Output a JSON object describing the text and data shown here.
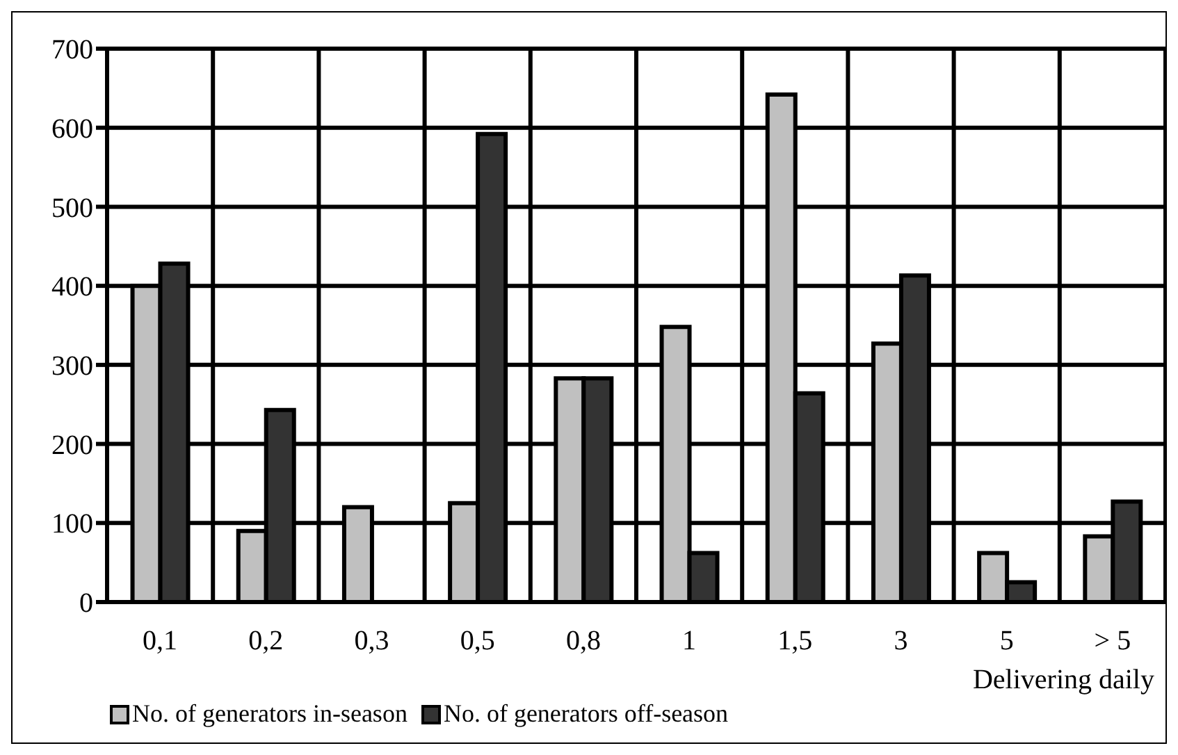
{
  "chart_data": {
    "type": "bar",
    "xlabel": "Delivering daily",
    "categories": [
      "0,1",
      "0,2",
      "0,3",
      "0,5",
      "0,8",
      "1",
      "1,5",
      "3",
      "5",
      "> 5"
    ],
    "series": [
      {
        "name": "No. of generators in-season",
        "color": "#c0c0c0",
        "values": [
          400,
          90,
          120,
          125,
          283,
          348,
          642,
          327,
          62,
          83
        ]
      },
      {
        "name": "No. of generators off-season",
        "color": "#333333",
        "values": [
          428,
          243,
          0,
          592,
          283,
          62,
          264,
          413,
          25,
          127
        ]
      }
    ],
    "ylim": [
      0,
      700
    ],
    "yticks": [
      0,
      100,
      200,
      300,
      400,
      500,
      600,
      700
    ],
    "grid": true,
    "legend": "bottom left"
  }
}
